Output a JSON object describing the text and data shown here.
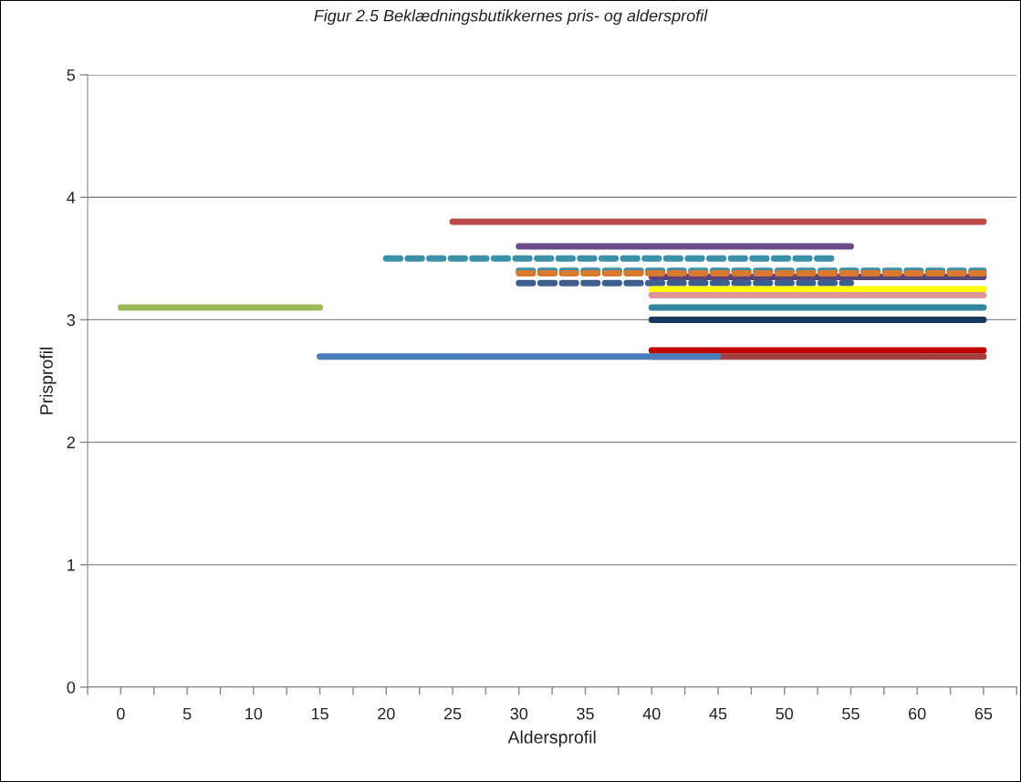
{
  "chart_data": {
    "type": "line",
    "title": "Figur 2.5 Beklædningsbutikkernes pris- og aldersprofil",
    "xlabel": "Aldersprofil",
    "ylabel": "Prisprofil",
    "xlim": [
      -2.5,
      67.5
    ],
    "xticks": [
      {
        "value": -2.5,
        "label": null
      },
      0,
      {
        "value": 2.5,
        "label": null
      },
      5,
      {
        "value": 7.5,
        "label": null
      },
      10,
      {
        "value": 12.5,
        "label": null
      },
      15,
      {
        "value": 17.5,
        "label": null
      },
      20,
      {
        "value": 22.5,
        "label": null
      },
      25,
      {
        "value": 27.5,
        "label": null
      },
      30,
      {
        "value": 32.5,
        "label": null
      },
      35,
      {
        "value": 37.5,
        "label": null
      },
      40,
      {
        "value": 42.5,
        "label": null
      },
      45,
      {
        "value": 47.5,
        "label": null
      },
      50,
      {
        "value": 52.5,
        "label": null
      },
      55,
      {
        "value": 57.5,
        "label": null
      },
      60,
      {
        "value": 62.5,
        "label": null
      },
      65,
      {
        "value": 67.5,
        "label": null
      }
    ],
    "ylim": [
      0,
      5
    ],
    "yticks": [
      0,
      1,
      2,
      3,
      4,
      5
    ],
    "grid": "y",
    "marker": "none",
    "series": [
      {
        "color": "#b94a48",
        "x": [
          25,
          65
        ],
        "values": [
          3.8,
          3.8
        ]
      },
      {
        "color": "#6b4c8a",
        "x": [
          30,
          55
        ],
        "values": [
          3.6,
          3.6
        ]
      },
      {
        "color": "#3a91a8",
        "x": [
          20,
          54
        ],
        "values": [
          3.5,
          3.5
        ],
        "line_style": "dashed"
      },
      {
        "color": "#3a91a8",
        "x": [
          30,
          65
        ],
        "values": [
          3.4,
          3.4
        ],
        "line_style": "dashed"
      },
      {
        "color": "#5a4478",
        "x": [
          40,
          65
        ],
        "values": [
          3.35,
          3.35
        ]
      },
      {
        "color": "#d9782f",
        "x": [
          30,
          65
        ],
        "values": [
          3.38,
          3.38
        ],
        "line_style": "dashed"
      },
      {
        "color": "#3d5f8f",
        "x": [
          30,
          55
        ],
        "values": [
          3.3,
          3.3
        ],
        "line_style": "dashed"
      },
      {
        "color": "#ffff00",
        "x": [
          40,
          65
        ],
        "values": [
          3.25,
          3.25
        ]
      },
      {
        "color": "#dd9696",
        "x": [
          40,
          65
        ],
        "values": [
          3.2,
          3.2
        ]
      },
      {
        "color": "#31869b",
        "x": [
          40,
          65
        ],
        "values": [
          3.1,
          3.1
        ]
      },
      {
        "color": "#17375e",
        "x": [
          40,
          65
        ],
        "values": [
          3.0,
          3.0
        ]
      },
      {
        "color": "#c00000",
        "x": [
          40,
          65
        ],
        "values": [
          2.75,
          2.75
        ]
      },
      {
        "color": "#a13f3f",
        "x": [
          40,
          65
        ],
        "values": [
          2.7,
          2.7
        ]
      },
      {
        "color": "#4a7ebb",
        "x": [
          15,
          45
        ],
        "values": [
          2.7,
          2.7
        ]
      },
      {
        "color": "#9bbb59",
        "x": [
          0,
          15
        ],
        "values": [
          3.1,
          3.1
        ]
      }
    ]
  }
}
